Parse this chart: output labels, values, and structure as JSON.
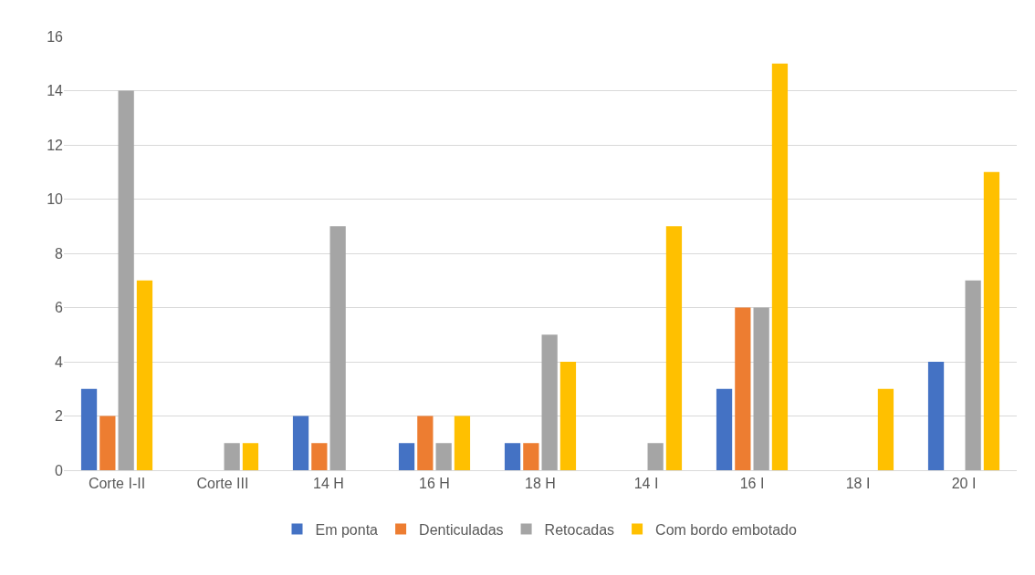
{
  "chart_data": {
    "type": "bar",
    "categories": [
      "Corte I-II",
      "Corte III",
      "14 H",
      "16 H",
      "18 H",
      "14 I",
      "16 I",
      "18 I",
      "20 I"
    ],
    "series": [
      {
        "name": "Em ponta",
        "color": "#4472c4",
        "values": [
          3,
          0,
          2,
          1,
          1,
          0,
          3,
          0,
          4
        ]
      },
      {
        "name": "Denticuladas",
        "color": "#ed7d31",
        "values": [
          2,
          0,
          1,
          2,
          1,
          0,
          6,
          0,
          0
        ]
      },
      {
        "name": "Retocadas",
        "color": "#a5a5a5",
        "values": [
          14,
          1,
          9,
          1,
          5,
          1,
          6,
          0,
          7
        ]
      },
      {
        "name": "Com bordo embotado",
        "color": "#ffc000",
        "values": [
          7,
          1,
          0,
          2,
          4,
          9,
          15,
          3,
          11
        ]
      }
    ],
    "ylim": [
      0,
      16
    ],
    "yticks": [
      0,
      2,
      4,
      6,
      8,
      10,
      12,
      14,
      16
    ],
    "grid": "y",
    "legend": "bottom"
  }
}
